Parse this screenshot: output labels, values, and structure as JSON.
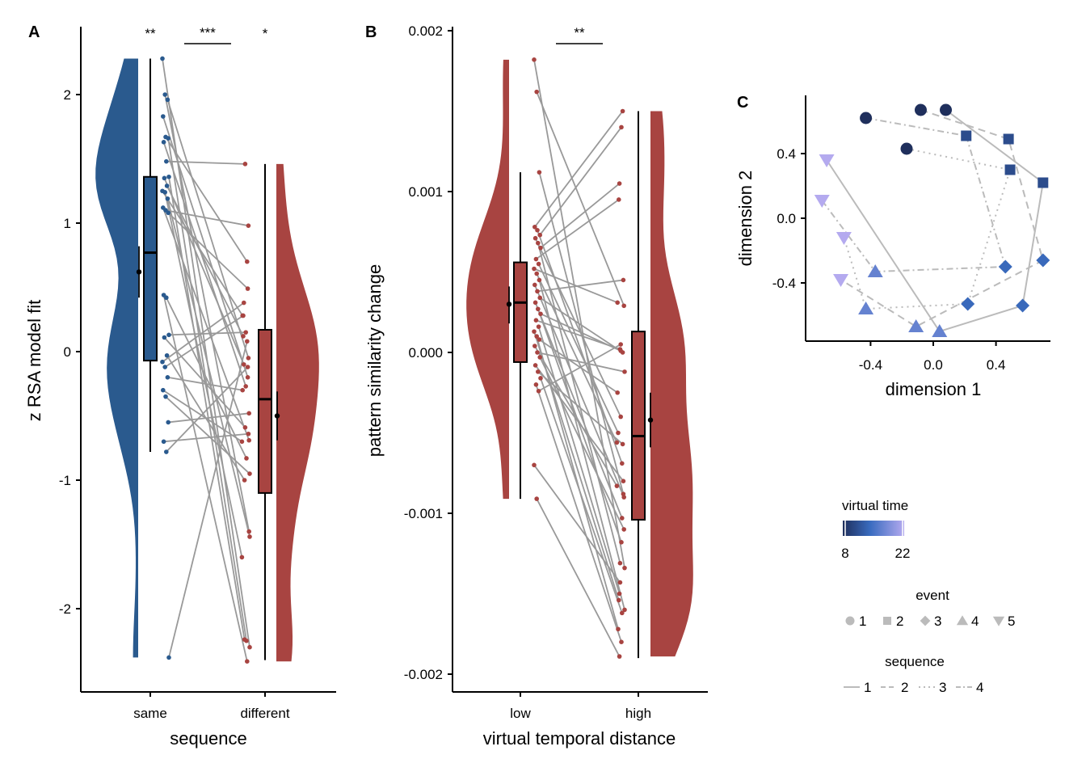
{
  "colors": {
    "same": "#2a5a8e",
    "different": "#a84441",
    "line": "#999999",
    "traj": "#bbbbbb",
    "vt_dark": "#1f2f5c",
    "vt_mid": "#3a6cc0",
    "vt_light": "#b4aaef"
  },
  "chart_data": [
    {
      "panel": "A",
      "type": "raincloud",
      "xlabel": "sequence",
      "ylabel": "z RSA model fit",
      "categories": [
        "same",
        "different"
      ],
      "yticks": [
        -2,
        -1,
        0,
        1,
        2
      ],
      "ytick_labels": [
        "-2",
        "-1",
        "0",
        "1",
        "2"
      ],
      "ylim": [
        -2.6,
        2.5
      ],
      "significance": [
        {
          "label": "**",
          "between": "same",
          "bar": false
        },
        {
          "label": "***",
          "between": "same-different",
          "bar": true
        },
        {
          "label": "*",
          "between": "different",
          "bar": false
        }
      ],
      "box": {
        "same": {
          "q1": -0.07,
          "median": 0.77,
          "q3": 1.36,
          "whisker_low": -0.78,
          "whisker_high": 2.28,
          "mean": 0.62,
          "ci": [
            0.42,
            0.82
          ]
        },
        "different": {
          "q1": -1.1,
          "median": -0.37,
          "q3": 0.17,
          "whisker_low": -2.4,
          "whisker_high": 1.46,
          "mean": -0.5,
          "ci": [
            -0.69,
            -0.31
          ]
        }
      },
      "pairs": [
        [
          2.28,
          -2.3
        ],
        [
          2.0,
          -1.4
        ],
        [
          1.96,
          -0.05
        ],
        [
          1.83,
          -0.2
        ],
        [
          1.67,
          0.7
        ],
        [
          1.66,
          -2.25
        ],
        [
          1.63,
          -0.27
        ],
        [
          1.48,
          1.46
        ],
        [
          1.36,
          -2.24
        ],
        [
          1.35,
          -0.1
        ],
        [
          1.29,
          0.12
        ],
        [
          1.25,
          0.28
        ],
        [
          1.24,
          -1.6
        ],
        [
          1.19,
          -1.44
        ],
        [
          1.12,
          -0.69
        ],
        [
          1.1,
          0.98
        ],
        [
          1.08,
          0.49
        ],
        [
          0.44,
          -2.41
        ],
        [
          0.42,
          -0.83
        ],
        [
          0.13,
          0.15
        ],
        [
          0.11,
          -0.59
        ],
        [
          -0.03,
          -1.0
        ],
        [
          -0.08,
          0.38
        ],
        [
          -0.12,
          0.28
        ],
        [
          -0.2,
          -0.3
        ],
        [
          -0.3,
          -0.7
        ],
        [
          -0.35,
          -0.95
        ],
        [
          -0.55,
          -0.48
        ],
        [
          -0.7,
          -0.64
        ],
        [
          -0.78,
          -0.12
        ],
        [
          -2.38,
          0.08
        ]
      ]
    },
    {
      "panel": "B",
      "type": "raincloud",
      "xlabel": "virtual temporal distance",
      "ylabel": "pattern similarity change",
      "categories": [
        "low",
        "high"
      ],
      "yticks": [
        -0.002,
        -0.001,
        0.0,
        0.001,
        0.002
      ],
      "ytick_labels": [
        "-0.002",
        "-0.001",
        "0.000",
        "0.001",
        "0.002"
      ],
      "ylim": [
        -0.0021,
        0.002
      ],
      "significance": [
        {
          "label": "**",
          "between": "low-high",
          "bar": true
        }
      ],
      "box": {
        "low": {
          "q1": -6e-05,
          "median": 0.00031,
          "q3": 0.00056,
          "whisker_low": -0.00091,
          "whisker_high": 0.00112,
          "mean": 0.0003,
          "ci": [
            0.00018,
            0.00041
          ]
        },
        "high": {
          "q1": -0.00104,
          "median": -0.00052,
          "q3": 0.00013,
          "whisker_low": -0.0019,
          "whisker_high": 0.0015,
          "mean": -0.00042,
          "ci": [
            -0.00059,
            -0.00025
          ]
        }
      },
      "pairs": [
        [
          0.00182,
          -0.00134
        ],
        [
          0.00162,
          0.00029
        ],
        [
          0.00112,
          -0.00088
        ],
        [
          0.00078,
          0.0015
        ],
        [
          0.00076,
          -0.00069
        ],
        [
          0.00073,
          0.0014
        ],
        [
          0.00071,
          -0.0004
        ],
        [
          0.00068,
          -0.00131
        ],
        [
          0.00065,
          0.00105
        ],
        [
          0.00058,
          0.00095
        ],
        [
          0.00055,
          -0.0005
        ],
        [
          0.00052,
          0.00031
        ],
        [
          0.00049,
          -0.00056
        ],
        [
          0.00045,
          -0.0016
        ],
        [
          0.00042,
          -0.0009
        ],
        [
          0.00038,
          0.00045
        ],
        [
          0.00034,
          0.0
        ],
        [
          0.00031,
          -0.00103
        ],
        [
          0.00027,
          -0.00118
        ],
        [
          0.00024,
          1e-05
        ],
        [
          0.0002,
          2e-05
        ],
        [
          0.00016,
          -0.0015
        ],
        [
          0.00013,
          -0.00154
        ],
        [
          0.0001,
          -0.00172
        ],
        [
          8e-05,
          -0.00025
        ],
        [
          4e-05,
          -0.00083
        ],
        [
          0.0,
          -0.00012
        ],
        [
          -3e-05,
          -0.0011
        ],
        [
          -8e-05,
          -0.0008
        ],
        [
          -0.00012,
          -0.00057
        ],
        [
          -0.00016,
          -0.00162
        ],
        [
          -0.0002,
          -0.0018
        ],
        [
          -0.00024,
          5e-05
        ],
        [
          -0.0007,
          -0.00143
        ],
        [
          -0.00091,
          -0.00189
        ]
      ]
    },
    {
      "panel": "C",
      "type": "scatter",
      "xlabel": "dimension 1",
      "ylabel": "dimension 2",
      "xticks": [
        -0.4,
        0.0,
        0.4
      ],
      "xtick_labels": [
        "-0.4",
        "0.0",
        "0.4"
      ],
      "yticks": [
        -0.4,
        0.0,
        0.4
      ],
      "ytick_labels": [
        "-0.4",
        "0.0",
        "0.4"
      ],
      "xlim": [
        -0.8,
        0.72
      ],
      "ylim": [
        -0.75,
        0.75
      ],
      "sequences": [
        {
          "id": 1,
          "dash": "solid",
          "points": [
            [
              0.08,
              0.67,
              1,
              8
            ],
            [
              0.7,
              0.22,
              2,
              11
            ],
            [
              0.57,
              -0.54,
              3,
              14
            ],
            [
              0.04,
              -0.7,
              4,
              17
            ],
            [
              -0.68,
              0.36,
              5,
              22
            ]
          ]
        },
        {
          "id": 2,
          "dash": "dashed",
          "points": [
            [
              -0.08,
              0.67,
              1,
              8
            ],
            [
              0.48,
              0.49,
              2,
              11
            ],
            [
              0.7,
              -0.26,
              3,
              14
            ],
            [
              -0.11,
              -0.67,
              4,
              17
            ],
            [
              -0.59,
              -0.38,
              5,
              22
            ]
          ]
        },
        {
          "id": 3,
          "dash": "dotted",
          "points": [
            [
              -0.17,
              0.43,
              1,
              8
            ],
            [
              0.49,
              0.3,
              2,
              11
            ],
            [
              0.22,
              -0.53,
              3,
              14
            ],
            [
              -0.43,
              -0.56,
              4,
              17
            ],
            [
              -0.57,
              -0.12,
              5,
              22
            ]
          ]
        },
        {
          "id": 4,
          "dash": "dotdash",
          "points": [
            [
              -0.43,
              0.62,
              1,
              8
            ],
            [
              0.21,
              0.51,
              2,
              11
            ],
            [
              0.46,
              -0.3,
              3,
              14
            ],
            [
              -0.37,
              -0.33,
              4,
              17
            ],
            [
              -0.71,
              0.11,
              5,
              22
            ]
          ]
        }
      ],
      "legend": {
        "virtual_time": {
          "title": "virtual time",
          "min_label": "8",
          "max_label": "22"
        },
        "event": {
          "title": "event",
          "items": [
            "1",
            "2",
            "3",
            "4",
            "5"
          ]
        },
        "sequence": {
          "title": "sequence",
          "items": [
            "1",
            "2",
            "3",
            "4"
          ]
        }
      }
    }
  ]
}
